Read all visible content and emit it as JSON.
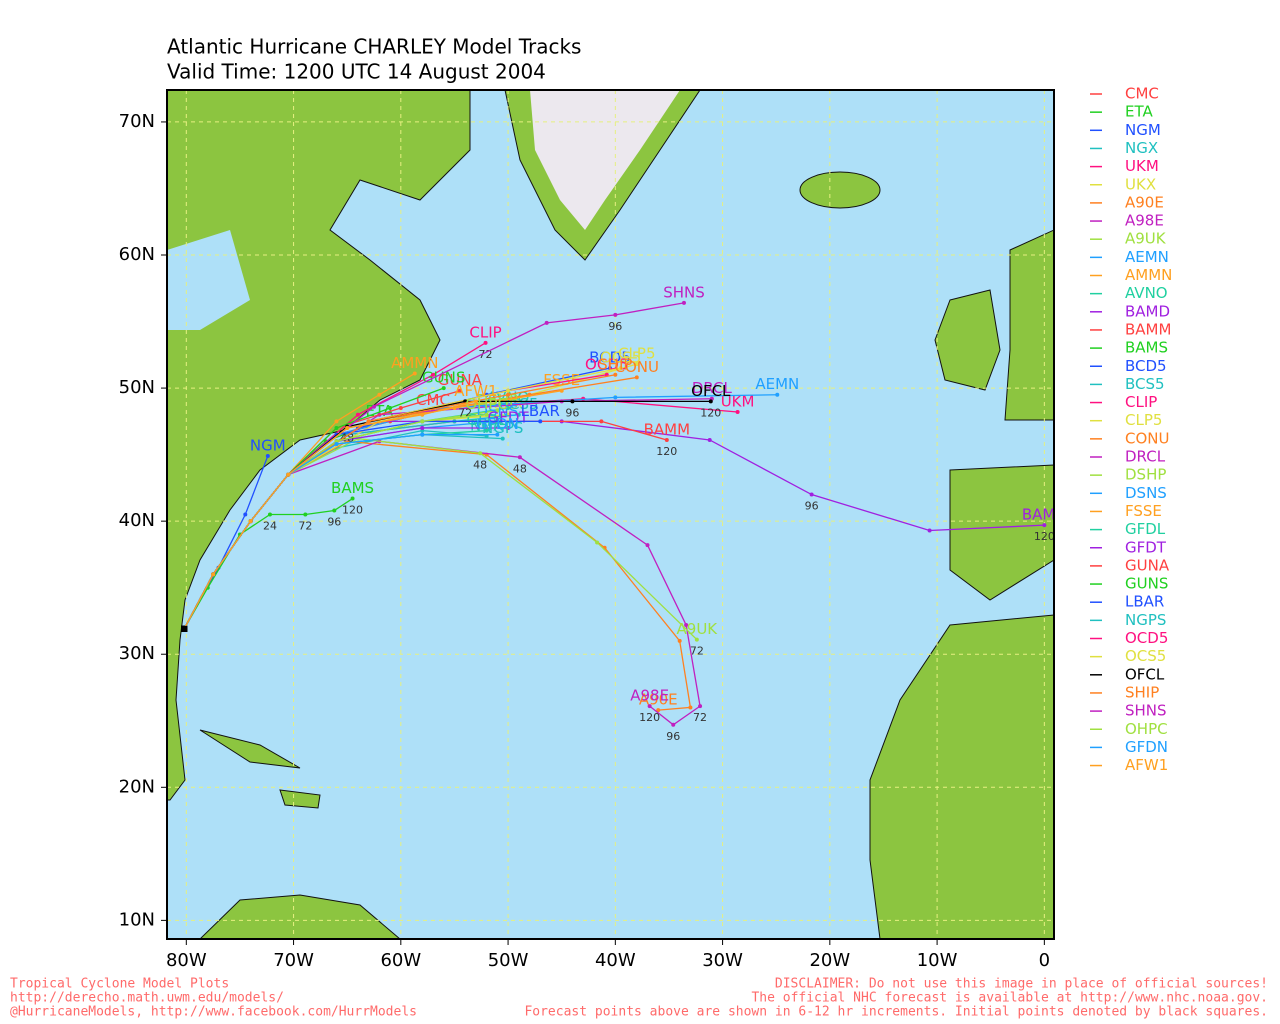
{
  "chart_data": {
    "type": "map",
    "title": "Atlantic Hurricane CHARLEY Model Tracks",
    "subtitle": "Valid Time: 1200 UTC 14 August 2004",
    "xlim": [
      -81.8,
      0.9
    ],
    "ylim": [
      8.6,
      72.4
    ],
    "xticks": [
      {
        "value": -80,
        "label": "80W"
      },
      {
        "value": -70,
        "label": "70W"
      },
      {
        "value": -60,
        "label": "60W"
      },
      {
        "value": -50,
        "label": "50W"
      },
      {
        "value": -40,
        "label": "40W"
      },
      {
        "value": -30,
        "label": "30W"
      },
      {
        "value": -20,
        "label": "20W"
      },
      {
        "value": -10,
        "label": "10W"
      },
      0
    ],
    "yticks": [
      {
        "value": 10,
        "label": "10N"
      },
      {
        "value": 20,
        "label": "20N"
      },
      {
        "value": 30,
        "label": "30N"
      },
      {
        "value": 40,
        "label": "40N"
      },
      {
        "value": 50,
        "label": "50N"
      },
      {
        "value": 60,
        "label": "60N"
      },
      {
        "value": 70,
        "label": "70N"
      }
    ],
    "grid": true,
    "series": [
      {
        "name": "CMC",
        "color": "#ff4040",
        "x": [
          -80.2,
          -77.5,
          -74,
          -70.5,
          -66,
          -61,
          -57
        ],
        "values": [
          31.9,
          36,
          40,
          43.5,
          46.5,
          47.5,
          48.3
        ]
      },
      {
        "name": "ETA",
        "color": "#20d020",
        "x": [
          -80.2,
          -77.5,
          -74,
          -70.5,
          -67,
          -62
        ],
        "values": [
          31.9,
          36,
          40,
          43.5,
          46,
          47.5
        ]
      },
      {
        "name": "NGM",
        "color": "#2050ff",
        "x": [
          -80.2,
          -77,
          -74.5,
          -72.4
        ],
        "values": [
          31.9,
          36.5,
          40.5,
          44.9
        ]
      },
      {
        "name": "NGX",
        "color": "#20c0c0",
        "x": [
          -80.2,
          -77.5,
          -74,
          -70.5,
          -66,
          -58,
          -52
        ],
        "values": [
          31.9,
          36,
          40,
          43.5,
          45.5,
          46.8,
          46.4
        ]
      },
      {
        "name": "UKM",
        "color": "#ff1080",
        "x": [
          -80.2,
          -77.5,
          -74,
          -70.5,
          -66,
          -56,
          -43,
          -28.6
        ],
        "values": [
          31.9,
          36,
          40,
          43.5,
          46.5,
          48.5,
          49.2,
          48.2
        ]
      },
      {
        "name": "UKX",
        "color": "#e0e040",
        "x": [
          -80.2,
          -77.5,
          -74,
          -70.5,
          -66,
          -58,
          -50
        ],
        "values": [
          31.9,
          36,
          40,
          43.5,
          46,
          47.5,
          48
        ]
      },
      {
        "name": "A90E",
        "color": "#ff8020",
        "x": [
          -80.2,
          -77.5,
          -74,
          -70.5,
          -65,
          -52,
          -41,
          -34,
          -33,
          -36
        ],
        "values": [
          31.9,
          36,
          40,
          43.5,
          46,
          45,
          38,
          31,
          26,
          25.8
        ]
      },
      {
        "name": "A98E",
        "color": "#c020c0",
        "x": [
          -80.2,
          -77.5,
          -74,
          -70.5,
          -62,
          -48.9,
          -37,
          -33.4,
          -32.1,
          -34.6,
          -36.8
        ],
        "values": [
          31.9,
          36,
          40,
          43.5,
          46,
          44.8,
          38.2,
          32.2,
          26.1,
          24.7,
          26.1
        ],
        "point_labels": [
          null,
          null,
          null,
          null,
          null,
          "48",
          null,
          null,
          "72",
          "96",
          "120"
        ]
      },
      {
        "name": "A9UK",
        "color": "#a0e040",
        "x": [
          -80.2,
          -77.5,
          -74,
          -70.5,
          -64,
          -52.6,
          -41.7,
          -32.4
        ],
        "values": [
          31.9,
          36,
          40,
          43.5,
          46.2,
          45.1,
          38.4,
          31.1
        ],
        "point_labels": [
          null,
          null,
          null,
          null,
          null,
          "48",
          null,
          "72"
        ]
      },
      {
        "name": "AEMN",
        "color": "#20a0ff",
        "x": [
          -80.2,
          -77.5,
          -74,
          -70.5,
          -66,
          -56,
          -40,
          -24.9
        ],
        "values": [
          31.9,
          36,
          40,
          43.5,
          46.5,
          48.5,
          49.3,
          49.5
        ]
      },
      {
        "name": "AMMN",
        "color": "#ffa020",
        "x": [
          -80.2,
          -77.5,
          -74,
          -70.5,
          -66,
          -62,
          -58.7
        ],
        "values": [
          31.9,
          36,
          40,
          43.5,
          47.5,
          49.5,
          51.1
        ]
      },
      {
        "name": "AVNO",
        "color": "#20d0a0",
        "x": [
          -80.2,
          -77.5,
          -74,
          -70.5,
          -66,
          -58,
          -50
        ],
        "values": [
          31.9,
          36,
          40,
          43.5,
          46,
          47.5,
          48.5
        ]
      },
      {
        "name": "BAMD",
        "color": "#a020e0",
        "x": [
          -80.2,
          -77.5,
          -74,
          -70.5,
          -62,
          -45,
          -31.2,
          -21.7,
          -10.7,
          0.0
        ],
        "values": [
          31.9,
          36,
          40,
          43.5,
          47.5,
          47.5,
          46.1,
          42.0,
          39.3,
          39.7
        ],
        "point_labels": [
          null,
          null,
          null,
          null,
          null,
          null,
          null,
          "96",
          null,
          "120"
        ]
      },
      {
        "name": "BAMM",
        "color": "#ff4040",
        "x": [
          -80.2,
          -77.5,
          -74,
          -70.5,
          -65,
          -55,
          -41.3,
          -35.2
        ],
        "values": [
          31.9,
          36,
          40,
          43.5,
          46.5,
          47.5,
          47.5,
          46.1
        ],
        "point_labels": [
          null,
          null,
          null,
          null,
          null,
          null,
          null,
          "120"
        ]
      },
      {
        "name": "BAMS",
        "color": "#20d020",
        "x": [
          -80.2,
          -78,
          -75,
          -72.2,
          -68.9,
          -66.2,
          -64.5
        ],
        "values": [
          31.9,
          35,
          39,
          40.5,
          40.5,
          40.8,
          41.7
        ],
        "point_labels": [
          null,
          null,
          null,
          "24",
          "72",
          "96",
          "120"
        ]
      },
      {
        "name": "BCD5",
        "color": "#2050ff",
        "x": [
          -80.2,
          -77.5,
          -74,
          -70.5,
          -64,
          -52,
          -40.5
        ],
        "values": [
          31.9,
          36,
          40,
          43.5,
          47,
          49.5,
          51.5
        ]
      },
      {
        "name": "BCS5",
        "color": "#20c0c0",
        "x": [
          -80.2,
          -77.5,
          -74,
          -70.5,
          -65,
          -55,
          -49
        ],
        "values": [
          31.9,
          36,
          40,
          43.5,
          46.5,
          47.5,
          48
        ]
      },
      {
        "name": "CLIP",
        "color": "#ff1080",
        "x": [
          -80.2,
          -77.5,
          -74,
          -70.5,
          -64,
          -57,
          -52.1
        ],
        "values": [
          31.9,
          36,
          40,
          43.5,
          48,
          51,
          53.4
        ],
        "point_labels": [
          null,
          null,
          null,
          null,
          null,
          null,
          "72"
        ]
      },
      {
        "name": "CLP5",
        "color": "#e0e040",
        "x": [
          -80.2,
          -77.5,
          -74,
          -70.5,
          -62,
          -48,
          -38
        ],
        "values": [
          31.9,
          36,
          40,
          43.5,
          47.5,
          49.5,
          51.8
        ]
      },
      {
        "name": "CONU",
        "color": "#ff8020",
        "x": [
          -80.2,
          -77.5,
          -74,
          -70.5,
          -63,
          -48,
          -38
        ],
        "values": [
          31.9,
          36,
          40,
          43.5,
          47.5,
          49.5,
          50.8
        ]
      },
      {
        "name": "DRCL",
        "color": "#c020c0",
        "x": [
          -80.2,
          -77.5,
          -74,
          -70.5,
          -62,
          -45,
          -31
        ],
        "values": [
          31.9,
          36,
          40,
          43.5,
          48,
          49,
          49.2
        ]
      },
      {
        "name": "DSHP",
        "color": "#a0e040",
        "x": [
          -80.2,
          -77.5,
          -74,
          -70.5,
          -66,
          -58,
          -51
        ],
        "values": [
          31.9,
          36,
          40,
          43.5,
          46,
          47.5,
          48.3
        ]
      },
      {
        "name": "DSNS",
        "color": "#20a0ff",
        "x": [
          -80.2,
          -77.5,
          -74,
          -70.5,
          -66,
          -58,
          -51
        ],
        "values": [
          31.9,
          36,
          40,
          43.5,
          46,
          47,
          47.5
        ]
      },
      {
        "name": "FSSE",
        "color": "#ffa020",
        "x": [
          -80.2,
          -77.5,
          -74,
          -70.5,
          -65,
          -55,
          -45
        ],
        "values": [
          31.9,
          36,
          40,
          43.5,
          47,
          48.5,
          49.8
        ]
      },
      {
        "name": "GFDL",
        "color": "#20d0a0",
        "x": [
          -80.2,
          -77.5,
          -74,
          -70.5,
          -66,
          -58,
          -52
        ],
        "values": [
          31.9,
          36,
          40,
          43.5,
          45.8,
          46.5,
          46.8
        ]
      },
      {
        "name": "GFDT",
        "color": "#a020e0",
        "x": [
          -80.2,
          -77.5,
          -74,
          -70.5,
          -66,
          -58,
          -50
        ],
        "values": [
          31.9,
          36,
          40,
          43.5,
          46,
          47,
          47
        ]
      },
      {
        "name": "GUNA",
        "color": "#ff4040",
        "x": [
          -80.2,
          -77.5,
          -74,
          -70.5,
          -66,
          -60,
          -54.5
        ],
        "values": [
          31.9,
          36,
          40,
          43.5,
          47,
          48.5,
          49.8
        ]
      },
      {
        "name": "GUNS",
        "color": "#20d020",
        "x": [
          -80.2,
          -77.5,
          -74,
          -70.5,
          -66,
          -61,
          -56
        ],
        "values": [
          31.9,
          36,
          40,
          43.5,
          47,
          48.5,
          50.0
        ]
      },
      {
        "name": "LBAR",
        "color": "#2050ff",
        "x": [
          -80.2,
          -77.5,
          -74,
          -70.5,
          -66,
          -58,
          -47
        ],
        "values": [
          31.9,
          36,
          40,
          43.5,
          46.5,
          47.5,
          47.5
        ]
      },
      {
        "name": "NGPS",
        "color": "#20c0c0",
        "x": [
          -80.2,
          -77.5,
          -74,
          -70.5,
          -66,
          -58,
          -50.5
        ],
        "values": [
          31.9,
          36,
          40,
          43.5,
          45.8,
          46.5,
          46.2
        ]
      },
      {
        "name": "OCD5",
        "color": "#ff1080",
        "x": [
          -80.2,
          -77.5,
          -74,
          -70.5,
          -63,
          -50,
          -40.8
        ],
        "values": [
          31.9,
          36,
          40,
          43.5,
          47.5,
          49.8,
          51.0
        ]
      },
      {
        "name": "OCS5",
        "color": "#e0e040",
        "x": [
          -80.2,
          -77.5,
          -74,
          -70.5,
          -63,
          -50,
          -39.5
        ],
        "values": [
          31.9,
          36,
          40,
          43.5,
          47.5,
          49.8,
          51.5
        ]
      },
      {
        "name": "OFCL",
        "color": "#000000",
        "x": [
          -80.2,
          -77.5,
          -74,
          -70.5,
          -65,
          -54,
          -44,
          -31.1
        ],
        "values": [
          31.9,
          36,
          40,
          43.5,
          47.1,
          49,
          49,
          49
        ],
        "point_labels": [
          null,
          null,
          null,
          null,
          "48",
          "72",
          "96",
          "120"
        ]
      },
      {
        "name": "SHIP",
        "color": "#ff8020",
        "x": [
          -80.2,
          -77.5,
          -74,
          -70.5,
          -63,
          -50,
          -40
        ],
        "values": [
          31.9,
          36,
          40,
          43.5,
          47.5,
          49.5,
          51
        ]
      },
      {
        "name": "SHNS",
        "color": "#c020c0",
        "x": [
          -80.2,
          -77.5,
          -74,
          -70.5,
          -62.5,
          -46.4,
          -40,
          -33.6
        ],
        "values": [
          31.9,
          36,
          40,
          43.5,
          48.6,
          54.9,
          55.5,
          56.4
        ],
        "point_labels": [
          null,
          null,
          null,
          null,
          null,
          null,
          "96",
          null
        ]
      },
      {
        "name": "OHPC",
        "color": "#a0e040",
        "x": [
          -80.2,
          -77.5,
          -74,
          -70.5,
          -66,
          -58,
          -52
        ],
        "values": [
          31.9,
          36,
          40,
          43.5,
          46,
          47.5,
          48
        ]
      },
      {
        "name": "GFDN",
        "color": "#20a0ff",
        "x": [
          -80.2,
          -77.5,
          -74,
          -70.5,
          -66,
          -58,
          -51
        ],
        "values": [
          31.9,
          36,
          40,
          43.5,
          45.8,
          46.5,
          46.5
        ]
      },
      {
        "name": "AFW1",
        "color": "#ffa020",
        "x": [
          -80.2,
          -77.5,
          -74,
          -70.5,
          -65,
          -58,
          -53
        ],
        "values": [
          31.9,
          36,
          40,
          43.5,
          47,
          48,
          49
        ]
      }
    ],
    "footer_left": [
      "Tropical Cyclone Model Plots",
      "http://derecho.math.uwm.edu/models/",
      "@HurricaneModels, http://www.facebook.com/HurrModels"
    ],
    "footer_right": [
      "DISCLAIMER: Do not use this image in place of official sources!",
      "The official NHC forecast is available at http://www.nhc.noaa.gov.",
      "Forecast points above are shown in 6-12 hr increments. Initial points denoted by black squares."
    ]
  }
}
